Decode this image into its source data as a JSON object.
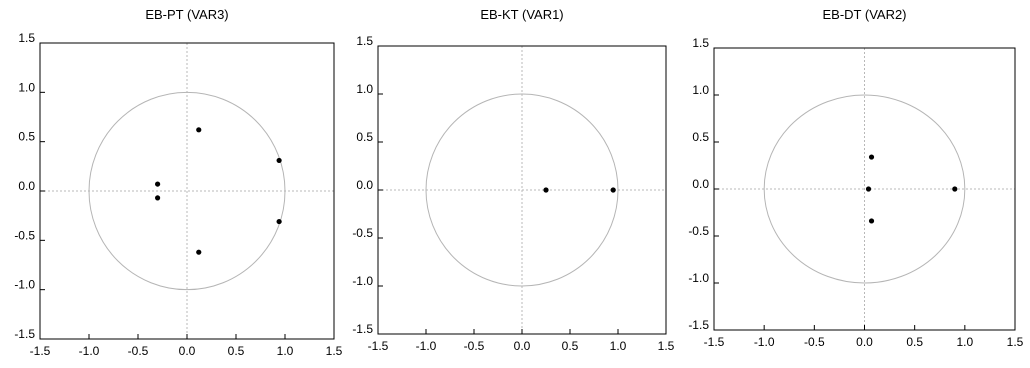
{
  "chart_data": [
    {
      "type": "scatter",
      "title": "EB-PT (VAR3)",
      "xlim": [
        -1.5,
        1.5
      ],
      "ylim": [
        -1.5,
        1.5
      ],
      "xticks": [
        "-1.5",
        "-1.0",
        "-0.5",
        "0.0",
        "0.5",
        "1.0",
        "1.5"
      ],
      "yticks": [
        "1.5",
        "1.0",
        "0.5",
        "0.0",
        "-0.5",
        "-1.0",
        "-1.5"
      ],
      "unit_circle": true,
      "points": [
        {
          "x": 0.12,
          "y": 0.62
        },
        {
          "x": 0.12,
          "y": -0.62
        },
        {
          "x": -0.3,
          "y": 0.07
        },
        {
          "x": -0.3,
          "y": -0.07
        },
        {
          "x": 0.94,
          "y": 0.31
        },
        {
          "x": 0.94,
          "y": -0.31
        }
      ]
    },
    {
      "type": "scatter",
      "title": "EB-KT (VAR1)",
      "xlim": [
        -1.5,
        1.5
      ],
      "ylim": [
        -1.5,
        1.5
      ],
      "xticks": [
        "-1.5",
        "-1.0",
        "-0.5",
        "0.0",
        "0.5",
        "1.0",
        "1.5"
      ],
      "yticks": [
        "1.5",
        "1.0",
        "0.5",
        "0.0",
        "-0.5",
        "-1.0",
        "-1.5"
      ],
      "unit_circle": true,
      "points": [
        {
          "x": 0.25,
          "y": 0.0
        },
        {
          "x": 0.95,
          "y": 0.0
        }
      ]
    },
    {
      "type": "scatter",
      "title": "EB-DT (VAR2)",
      "xlim": [
        -1.5,
        1.5
      ],
      "ylim": [
        -1.5,
        1.5
      ],
      "xticks": [
        "-1.5",
        "-1.0",
        "-0.5",
        "0.0",
        "0.5",
        "1.0",
        "1.5"
      ],
      "yticks": [
        "1.5",
        "1.0",
        "0.5",
        "0.0",
        "-0.5",
        "-1.0",
        "-1.5"
      ],
      "unit_circle": true,
      "points": [
        {
          "x": 0.04,
          "y": 0.0
        },
        {
          "x": 0.07,
          "y": 0.34
        },
        {
          "x": 0.07,
          "y": -0.34
        },
        {
          "x": 0.9,
          "y": 0.0
        }
      ]
    }
  ]
}
